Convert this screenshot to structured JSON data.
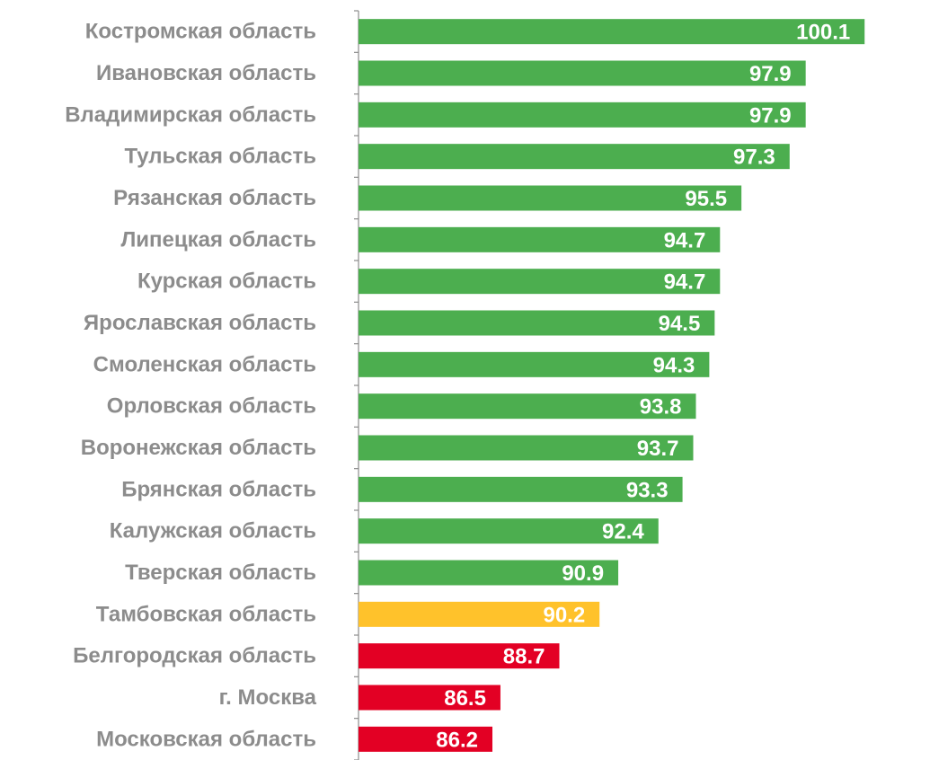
{
  "chart_data": {
    "type": "bar",
    "orientation": "horizontal",
    "categories": [
      "Костромская область",
      "Ивановская область",
      "Владимирская область",
      "Тульская область",
      "Рязанская область",
      "Липецкая область",
      "Курская область",
      "Ярославская область",
      "Смоленская область",
      "Орловская область",
      "Воронежская область",
      "Брянская область",
      "Калужская область",
      "Тверская область",
      "Тамбовская область",
      "Белгородская область",
      "г. Москва",
      "Московская область"
    ],
    "values": [
      100.1,
      97.9,
      97.9,
      97.3,
      95.5,
      94.7,
      94.7,
      94.5,
      94.3,
      93.8,
      93.7,
      93.3,
      92.4,
      90.9,
      90.2,
      88.7,
      86.5,
      86.2
    ],
    "value_labels": [
      "100.1",
      "97.9",
      "97.9",
      "97.3",
      "95.5",
      "94.7",
      "94.7",
      "94.5",
      "94.3",
      "93.8",
      "93.7",
      "93.3",
      "92.4",
      "90.9",
      "90.2",
      "88.7",
      "86.5",
      "86.2"
    ],
    "bar_colors": [
      "#4cae4f",
      "#4cae4f",
      "#4cae4f",
      "#4cae4f",
      "#4cae4f",
      "#4cae4f",
      "#4cae4f",
      "#4cae4f",
      "#4cae4f",
      "#4cae4f",
      "#4cae4f",
      "#4cae4f",
      "#4cae4f",
      "#4cae4f",
      "#ffc22b",
      "#e30024",
      "#e30024",
      "#e30024"
    ],
    "xlim": [
      81.2,
      100.1
    ],
    "grid": false,
    "legend": false,
    "title": "",
    "xlabel": "",
    "ylabel": ""
  },
  "colors": {
    "green": "#4cae4f",
    "yellow": "#ffc22b",
    "red": "#e30024",
    "label_gray": "#8c8c8c",
    "value_text": "#ffffff"
  }
}
